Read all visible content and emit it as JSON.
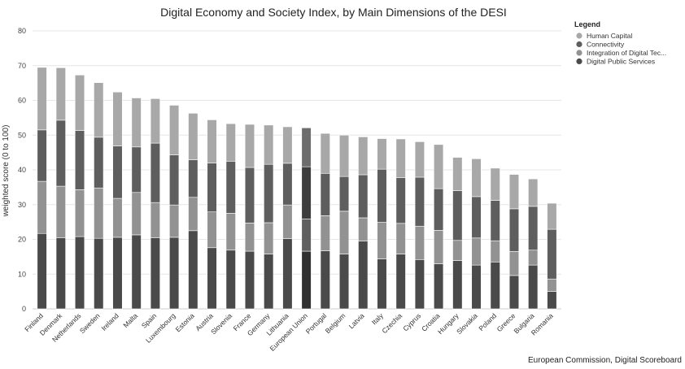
{
  "chart_data": {
    "type": "bar",
    "stacked": true,
    "title": "Digital Economy and Society Index, by Main Dimensions of the DESI",
    "xlabel": "",
    "ylabel": "weighted score (0 to 100)",
    "ylim": [
      0,
      80
    ],
    "yticks": [
      0,
      10,
      20,
      30,
      40,
      50,
      60,
      70,
      80
    ],
    "grid": true,
    "legend_title": "Legend",
    "legend_position": "top-right",
    "categories": [
      "Finland",
      "Denmark",
      "Netherlands",
      "Sweden",
      "Ireland",
      "Malta",
      "Spain",
      "Luxembourg",
      "Estonia",
      "Austria",
      "Slovenia",
      "France",
      "Germany",
      "Lithuania",
      "European Union",
      "Portugal",
      "Belgium",
      "Latvia",
      "Italy",
      "Czechia",
      "Cyprus",
      "Croatia",
      "Hungary",
      "Slovakia",
      "Poland",
      "Greece",
      "Bulgaria",
      "Romania"
    ],
    "highlight_category": "European Union",
    "series": [
      {
        "name": "Digital Public Services",
        "color": "#4a4a4a",
        "values": [
          21.7,
          20.5,
          20.8,
          20.3,
          20.6,
          21.3,
          20.5,
          20.6,
          22.5,
          17.6,
          16.9,
          16.6,
          15.8,
          20.2,
          16.6,
          16.7,
          15.8,
          19.5,
          14.4,
          15.8,
          14.2,
          13.0,
          13.9,
          12.6,
          13.5,
          9.6,
          12.6,
          5.0
        ]
      },
      {
        "name": "Integration of Digital Tec...",
        "color": "#929292",
        "values": [
          15.0,
          14.8,
          13.5,
          14.5,
          11.2,
          12.2,
          10.1,
          9.3,
          9.6,
          10.3,
          10.6,
          8.1,
          9.0,
          9.7,
          9.3,
          10.1,
          12.3,
          6.7,
          10.5,
          8.8,
          9.6,
          9.6,
          5.8,
          7.8,
          6.1,
          6.9,
          4.3,
          3.6
        ]
      },
      {
        "name": "Connectivity",
        "color": "#5e5e5e",
        "values": [
          14.8,
          19.0,
          17.0,
          14.6,
          15.1,
          13.1,
          17.1,
          14.4,
          10.8,
          14.1,
          15.0,
          16.0,
          16.8,
          12.0,
          15.0,
          12.2,
          10.0,
          12.4,
          15.3,
          13.2,
          14.1,
          12.0,
          14.3,
          11.9,
          11.6,
          12.3,
          12.6,
          14.3
        ]
      },
      {
        "name": "Human Capital",
        "color": "#a8a8a8",
        "values": [
          18.0,
          15.1,
          16.0,
          15.7,
          15.5,
          14.1,
          12.8,
          14.3,
          13.4,
          12.4,
          10.8,
          12.4,
          11.3,
          10.5,
          11.2,
          11.5,
          11.9,
          10.9,
          8.8,
          11.1,
          10.2,
          12.7,
          9.6,
          10.9,
          9.3,
          9.9,
          7.9,
          7.5
        ]
      }
    ]
  },
  "credit": "European Commission, Digital Scoreboard"
}
